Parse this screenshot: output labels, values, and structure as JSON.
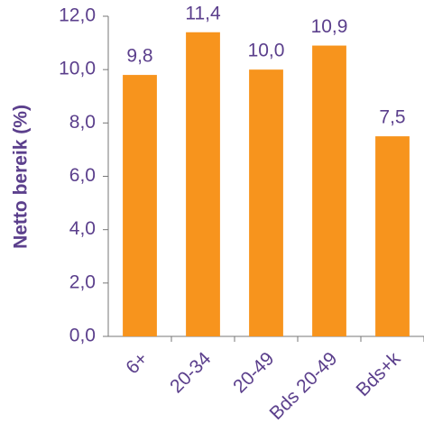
{
  "chart_data": {
    "type": "bar",
    "y_axis_label": "Netto bereik (%)",
    "categories": [
      "6+",
      "20-34",
      "20-49",
      "Bds 20-49",
      "Bds+k"
    ],
    "values": [
      9.8,
      11.4,
      10.0,
      10.9,
      7.5
    ],
    "value_labels": [
      "9,8",
      "11,4",
      "10,0",
      "10,9",
      "7,5"
    ],
    "color": "#f7941d",
    "ylim": [
      0,
      12
    ],
    "yticks": [
      {
        "value": 0,
        "label": "0,0"
      },
      {
        "value": 2,
        "label": "2,0"
      },
      {
        "value": 4,
        "label": "4,0"
      },
      {
        "value": 6,
        "label": "6,0"
      },
      {
        "value": 8,
        "label": "8,0"
      },
      {
        "value": 10,
        "label": "10,0"
      },
      {
        "value": 12,
        "label": "12,0"
      }
    ],
    "grid": false
  }
}
